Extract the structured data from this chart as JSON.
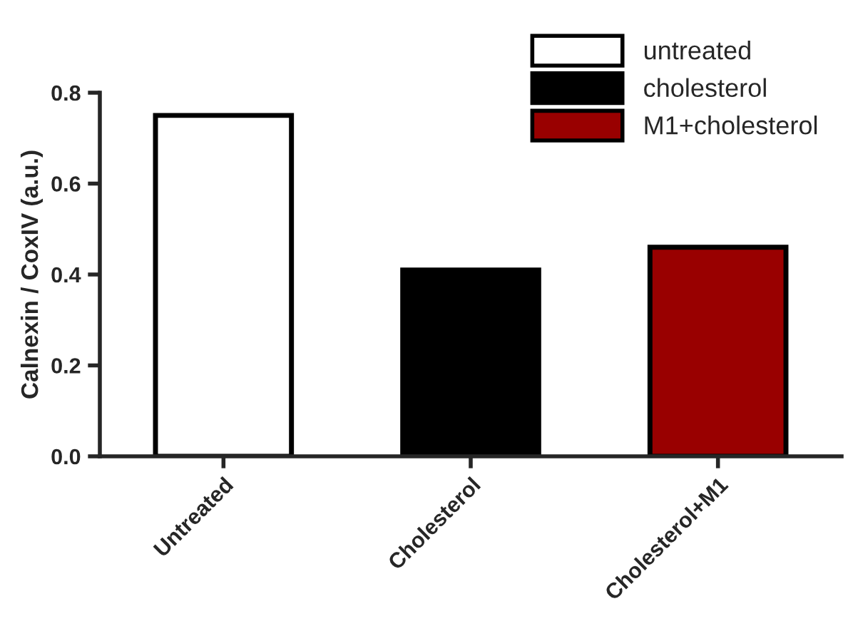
{
  "chart_data": {
    "type": "bar",
    "ylabel": "Calnexin / CoxIV (a.u.)",
    "categories": [
      "Untreated",
      "Cholesterol",
      "Cholesterol+M1"
    ],
    "series": [
      {
        "name": "untreated",
        "color": "#ffffff",
        "values": [
          0.75,
          null,
          null
        ]
      },
      {
        "name": "cholesterol",
        "color": "#000000",
        "values": [
          null,
          0.41,
          null
        ]
      },
      {
        "name": "M1+cholesterol",
        "color": "#990000",
        "values": [
          null,
          null,
          0.46
        ]
      }
    ],
    "ylim": [
      0,
      0.8
    ],
    "yticks": [
      {
        "value": 0,
        "label": "0.0"
      },
      {
        "value": 0.2,
        "label": "0.2"
      },
      {
        "value": 0.4,
        "label": "0.4"
      },
      {
        "value": 0.6,
        "label": "0.6"
      },
      {
        "value": 0.8,
        "label": "0.8"
      }
    ],
    "legend": "top right",
    "grid": false
  }
}
